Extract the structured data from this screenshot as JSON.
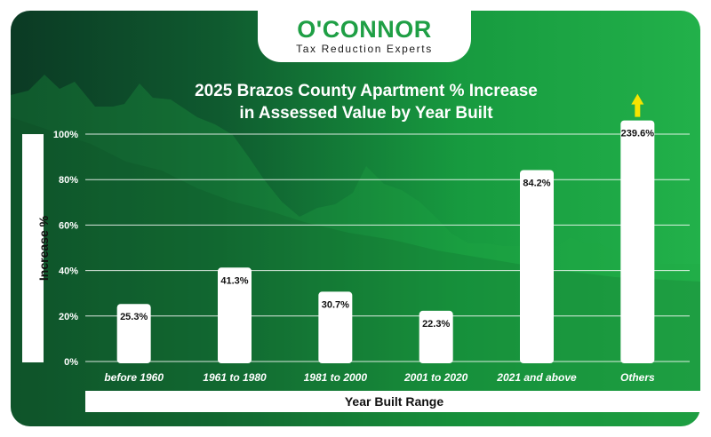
{
  "brand": {
    "name": "O'CONNOR",
    "tagline": "Tax Reduction Experts"
  },
  "chart_data": {
    "type": "bar",
    "title_line1": "2025 Brazos County Apartment % Increase",
    "title_line2": "in Assessed Value by Year Built",
    "xlabel": "Year Built Range",
    "ylabel": "Increase %",
    "categories": [
      "before 1960",
      "1961 to 1980",
      "1981 to 2000",
      "2001 to 2020",
      "2021 and above",
      "Others"
    ],
    "values": [
      25.3,
      41.3,
      30.7,
      22.3,
      84.2,
      239.6
    ],
    "value_labels": [
      "25.3%",
      "41.3%",
      "30.7%",
      "22.3%",
      "84.2%",
      "239.6%"
    ],
    "ylim": [
      0,
      100
    ],
    "yticks": [
      0,
      20,
      40,
      60,
      80,
      100
    ],
    "ytick_labels": [
      "0%",
      "20%",
      "40%",
      "60%",
      "80%",
      "100%"
    ],
    "grid": true,
    "overflow_indicator": {
      "category": "Others",
      "symbol": "up-arrow",
      "color": "#f5e400"
    },
    "colors": {
      "bars": "#ffffff",
      "grid": "#ffffff",
      "labels": "#111111",
      "tick_text": "#ffffff"
    }
  }
}
